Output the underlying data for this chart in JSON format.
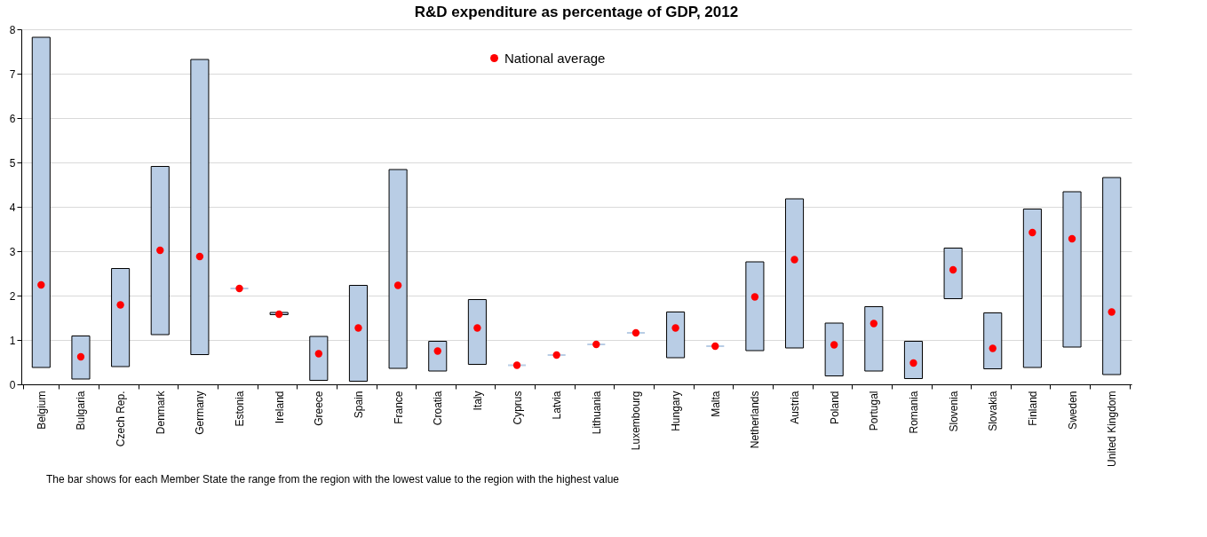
{
  "chart_data": {
    "type": "bar",
    "title": "R&D expenditure as percentage of GDP, 2012",
    "categories": [
      "Belgium",
      "Bulgaria",
      "Czech Rep.",
      "Denmark",
      "Germany",
      "Estonia",
      "Ireland",
      "Greece",
      "Spain",
      "France",
      "Croatia",
      "Italy",
      "Cyprus",
      "Latvia",
      "Lithuania",
      "Luxembourg",
      "Hungary",
      "Malta",
      "Netherlands",
      "Austria",
      "Poland",
      "Portugal",
      "Romania",
      "Slovenia",
      "Slovakia",
      "Finland",
      "Sweden",
      "United Kingdom"
    ],
    "series": [
      {
        "type": "bar",
        "color": "#b9cde5",
        "base": [
          0.38,
          0.12,
          0.4,
          1.12,
          0.67,
          2.16,
          1.57,
          0.09,
          0.07,
          0.36,
          0.3,
          0.45,
          0.43,
          0.66,
          0.9,
          1.16,
          0.6,
          0.86,
          0.76,
          0.82,
          0.19,
          0.3,
          0.13,
          1.93,
          0.35,
          0.38,
          0.84,
          0.22
        ],
        "values": [
          7.44,
          0.97,
          2.21,
          3.79,
          6.65,
          0,
          0.05,
          0.99,
          2.16,
          4.48,
          0.67,
          1.46,
          0,
          0,
          0,
          0,
          1.03,
          0,
          2.0,
          3.36,
          1.19,
          1.45,
          0.84,
          1.14,
          1.26,
          3.57,
          3.5,
          4.44
        ]
      },
      {
        "type": "scatter",
        "name": "National average",
        "color": "#ff0000",
        "marker": "circle",
        "x": [
          "Belgium",
          "Bulgaria",
          "Czech Rep.",
          "Denmark",
          "Germany",
          "Estonia",
          "Ireland",
          "Greece",
          "Spain",
          "France",
          "Croatia",
          "Italy",
          "Cyprus",
          "Latvia",
          "Lithuania",
          "Luxembourg",
          "Hungary",
          "Malta",
          "Netherlands",
          "Austria",
          "Poland",
          "Portugal",
          "Romania",
          "Slovenia",
          "Slovakia",
          "Finland",
          "Sweden",
          "United Kingdom"
        ],
        "values": [
          2.24,
          0.62,
          1.79,
          3.02,
          2.88,
          2.16,
          1.58,
          0.69,
          1.27,
          2.23,
          0.75,
          1.27,
          0.43,
          0.66,
          0.9,
          1.16,
          1.27,
          0.86,
          1.97,
          2.81,
          0.89,
          1.37,
          0.48,
          2.58,
          0.81,
          3.42,
          3.28,
          1.63
        ]
      }
    ],
    "ylim": [
      0,
      8
    ],
    "yticks": [
      0,
      1,
      2,
      3,
      4,
      5,
      6,
      7,
      8
    ],
    "grid": "y",
    "legend": "top",
    "annotations": [
      "The bar shows for each Member State the range from the region with the lowest value to the region with the highest value"
    ]
  }
}
